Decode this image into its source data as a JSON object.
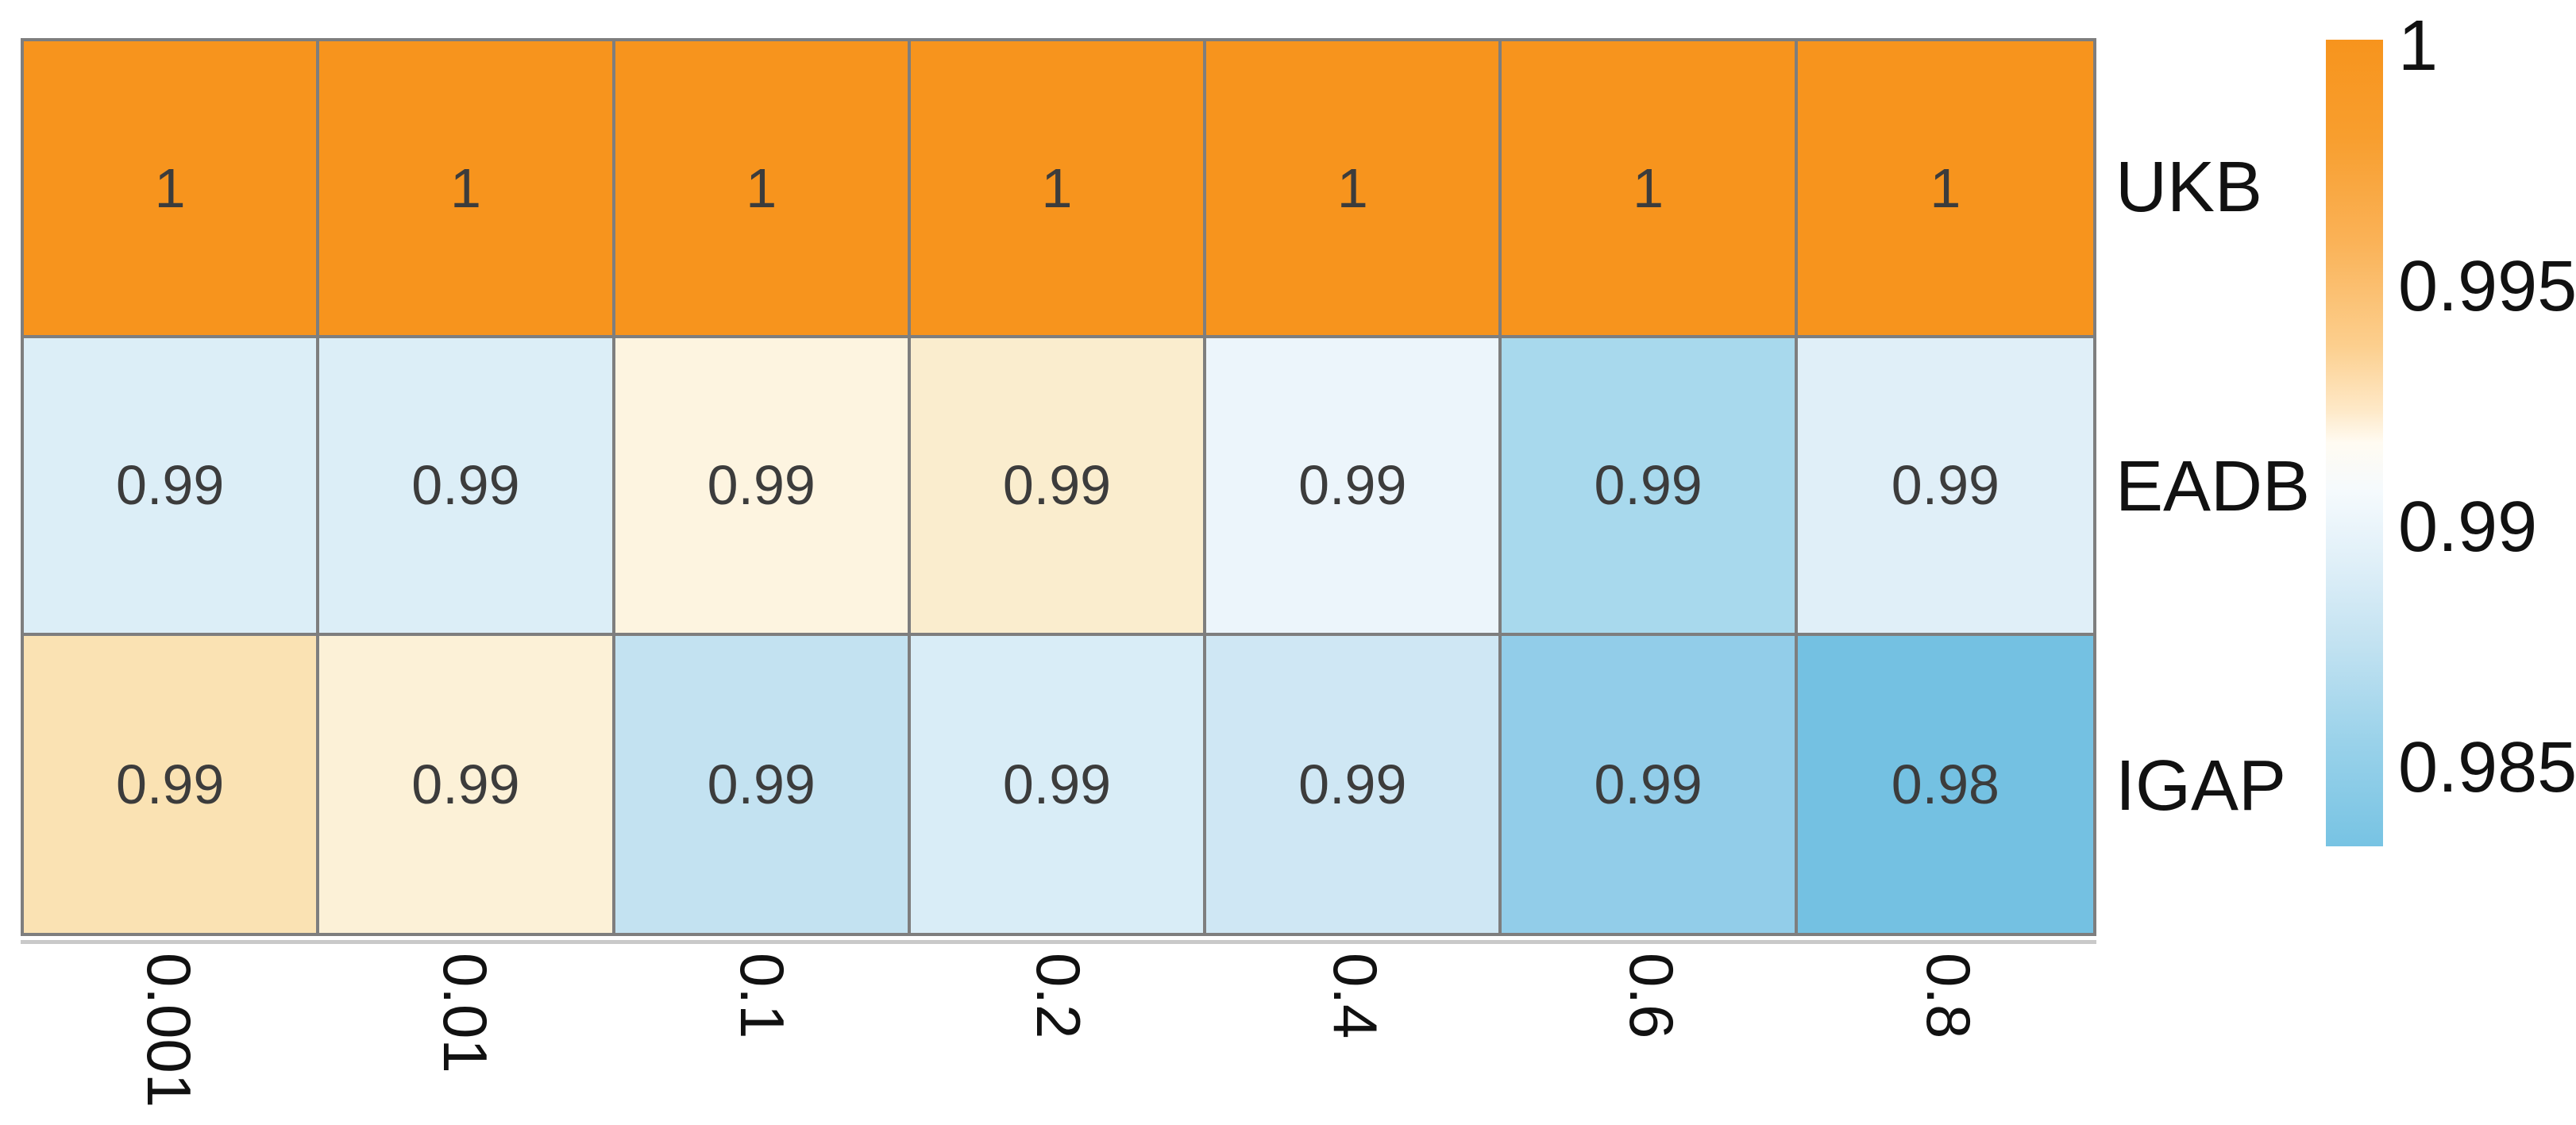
{
  "chart_data": {
    "type": "heatmap",
    "title": "",
    "xlabel": "",
    "ylabel": "",
    "x_categories": [
      "0.001",
      "0.01",
      "0.1",
      "0.2",
      "0.4",
      "0.6",
      "0.8"
    ],
    "y_categories": [
      "UKB",
      "EADB",
      "IGAP"
    ],
    "values": [
      [
        1,
        1,
        1,
        1,
        1,
        1,
        1
      ],
      [
        0.99,
        0.99,
        0.99,
        0.99,
        0.99,
        0.99,
        0.99
      ],
      [
        0.99,
        0.99,
        0.99,
        0.99,
        0.99,
        0.99,
        0.98
      ]
    ],
    "grid": "on",
    "x_label_rotation_deg": 90,
    "cells": [
      {
        "label": "1",
        "color": "#F7941D"
      },
      {
        "label": "1",
        "color": "#F7941D"
      },
      {
        "label": "1",
        "color": "#F7941D"
      },
      {
        "label": "1",
        "color": "#F7941D"
      },
      {
        "label": "1",
        "color": "#F7941D"
      },
      {
        "label": "1",
        "color": "#F7941D"
      },
      {
        "label": "1",
        "color": "#F7941D"
      },
      {
        "label": "0.99",
        "color": "#DCEEF7"
      },
      {
        "label": "0.99",
        "color": "#DCEEF7"
      },
      {
        "label": "0.99",
        "color": "#FDF4E0"
      },
      {
        "label": "0.99",
        "color": "#FAEDCE"
      },
      {
        "label": "0.99",
        "color": "#ECF5FB"
      },
      {
        "label": "0.99",
        "color": "#A8D9ED"
      },
      {
        "label": "0.99",
        "color": "#E0EFF8"
      },
      {
        "label": "0.99",
        "color": "#FAE2B3"
      },
      {
        "label": "0.99",
        "color": "#FCF1D7"
      },
      {
        "label": "0.99",
        "color": "#C3E2F1"
      },
      {
        "label": "0.99",
        "color": "#D9EDF7"
      },
      {
        "label": "0.99",
        "color": "#CFE7F4"
      },
      {
        "label": "0.99",
        "color": "#92CDE9"
      },
      {
        "label": "0.98",
        "color": "#74C1E2"
      }
    ],
    "colorbar": {
      "position": "right",
      "ticks": [
        "1",
        "0.995",
        "0.99",
        "0.985"
      ],
      "range": [
        0.983,
        1.0
      ],
      "gradient": [
        {
          "color": "#F7941D",
          "pos": 0
        },
        {
          "color": "#F89E2E",
          "pos": 12
        },
        {
          "color": "#FAB257",
          "pos": 25
        },
        {
          "color": "#FCCF8E",
          "pos": 38
        },
        {
          "color": "#FEE9C8",
          "pos": 46
        },
        {
          "color": "#FFFBF2",
          "pos": 50
        },
        {
          "color": "#F5FAFD",
          "pos": 56
        },
        {
          "color": "#DFEFF8",
          "pos": 65
        },
        {
          "color": "#C2E2F1",
          "pos": 75
        },
        {
          "color": "#9AD2EA",
          "pos": 87
        },
        {
          "color": "#77C3E3",
          "pos": 100
        }
      ]
    },
    "colors": {
      "high": "#F7941D",
      "mid": "#FFFFFF",
      "low": "#77C3E3",
      "grid_line": "#7E7E7E",
      "value_text": "#3C3C3C",
      "label_text": "#111111"
    }
  }
}
